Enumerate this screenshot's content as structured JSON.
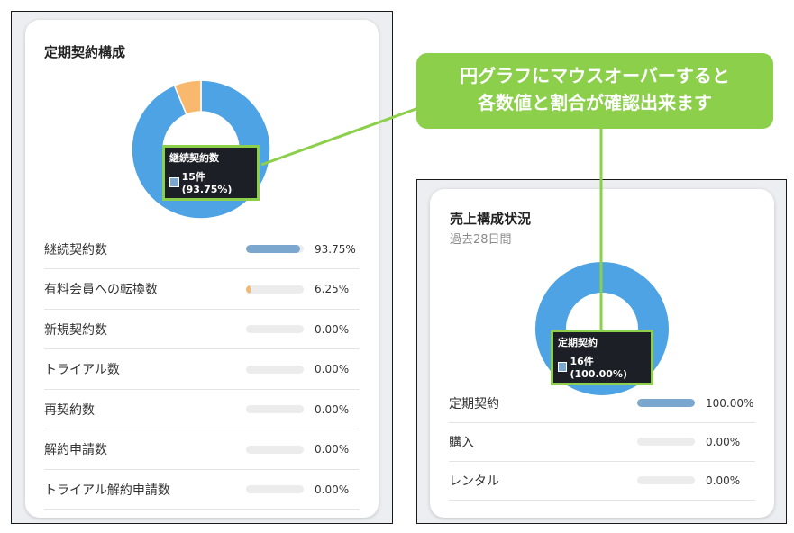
{
  "callout": {
    "line1": "円グラフにマウスオーバーすると",
    "line2": "各数値と割合が確認出来ます"
  },
  "left_card": {
    "title": "定期契約構成",
    "tooltip": {
      "title": "継続契約数",
      "value": "15件(93.75%)"
    },
    "items": [
      {
        "label": "継続契約数",
        "percent_text": "93.75%",
        "value": 0.9375,
        "color": "#7ba7cf"
      },
      {
        "label": "有料会員への転換数",
        "percent_text": "6.25%",
        "value": 0.0625,
        "color": "#f5b870"
      },
      {
        "label": "新規契約数",
        "percent_text": "0.00%",
        "value": 0,
        "color": "#7ba7cf"
      },
      {
        "label": "トライアル数",
        "percent_text": "0.00%",
        "value": 0,
        "color": "#7ba7cf"
      },
      {
        "label": "再契約数",
        "percent_text": "0.00%",
        "value": 0,
        "color": "#7ba7cf"
      },
      {
        "label": "解約申請数",
        "percent_text": "0.00%",
        "value": 0,
        "color": "#7ba7cf"
      },
      {
        "label": "トライアル解約申請数",
        "percent_text": "0.00%",
        "value": 0,
        "color": "#7ba7cf"
      }
    ],
    "donut": [
      {
        "value": 93.75,
        "color": "#4da3e3"
      },
      {
        "value": 6.25,
        "color": "#f8b86e"
      }
    ]
  },
  "right_card": {
    "title": "売上構成状況",
    "subtitle": "過去28日間",
    "tooltip": {
      "title": "定期契約",
      "value": "16件(100.00%)"
    },
    "items": [
      {
        "label": "定期契約",
        "percent_text": "100.00%",
        "value": 1.0,
        "color": "#7ba7cf"
      },
      {
        "label": "購入",
        "percent_text": "0.00%",
        "value": 0,
        "color": "#7ba7cf"
      },
      {
        "label": "レンタル",
        "percent_text": "0.00%",
        "value": 0,
        "color": "#7ba7cf"
      }
    ],
    "donut": [
      {
        "value": 100,
        "color": "#4da3e3"
      }
    ]
  },
  "colors": {
    "accent_green": "#8bcf4b",
    "tooltip_bg": "#1c1f25"
  }
}
